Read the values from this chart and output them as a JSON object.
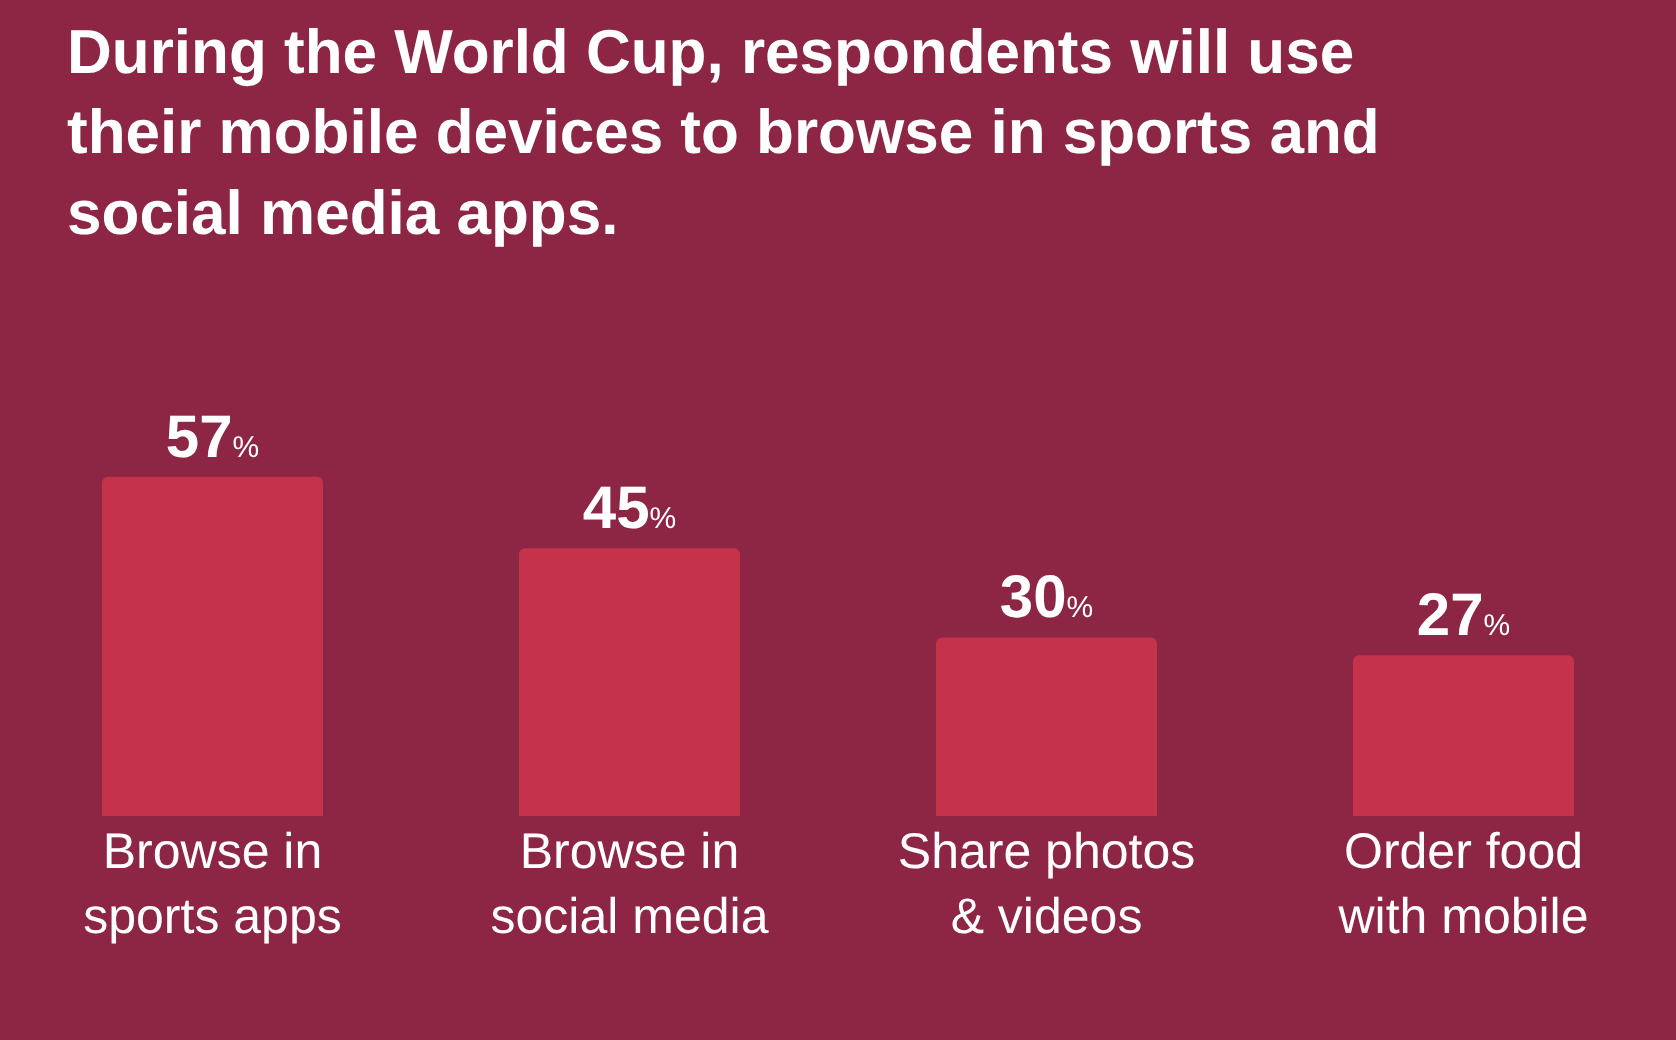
{
  "chart_data": {
    "type": "bar",
    "title": "During the World Cup, respondents will use their mobile devices to browse in sports and social media apps.",
    "categories": [
      "Browse in sports apps",
      "Browse in social media",
      "Share photos & videos",
      "Order food with mobile"
    ],
    "values": [
      57,
      45,
      30,
      27
    ],
    "color": "#c5334a",
    "value_labels": [
      "57%",
      "45%",
      "30%",
      "27%"
    ]
  }
}
